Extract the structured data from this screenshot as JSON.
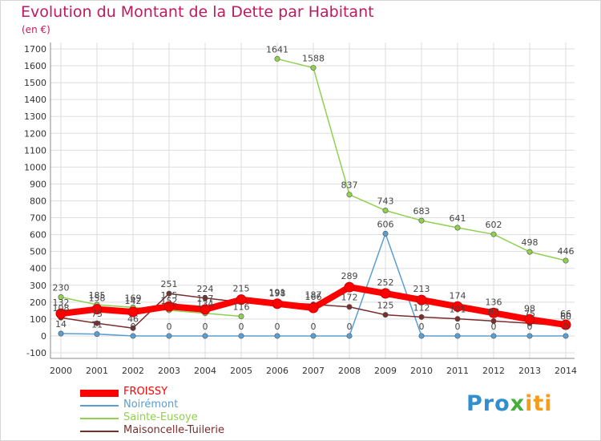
{
  "title": "Evolution du Montant de la Dette par Habitant",
  "subtitle": "(en €)",
  "colors": {
    "title": "#c0195e",
    "background": "#ffffff",
    "grid": "#dddddd"
  },
  "logo": {
    "text": "Proxiti",
    "parts": [
      "Pro",
      "x",
      "iti"
    ]
  },
  "chart_data": {
    "type": "line",
    "title": "Evolution du Montant de la Dette par Habitant",
    "subtitle": "(en €)",
    "xlabel": "",
    "ylabel": "",
    "x": [
      "2000",
      "2001",
      "2002",
      "2003",
      "2004",
      "2005",
      "2006",
      "2007",
      "2008",
      "2009",
      "2010",
      "2011",
      "2012",
      "2013",
      "2014"
    ],
    "ylim": [
      -100,
      1700
    ],
    "yticks": [
      "-100",
      "0",
      "100",
      "200",
      "300",
      "400",
      "500",
      "600",
      "700",
      "800",
      "900",
      "1000",
      "1100",
      "1200",
      "1300",
      "1400",
      "1500",
      "1600",
      "1700"
    ],
    "grid": true,
    "legend_position": "bottom-left",
    "series": [
      {
        "name": "FROISSY",
        "color": "#ff0000",
        "emphasis": true,
        "values": [
          132,
          158,
          142,
          175,
          157,
          215,
          191,
          166,
          289,
          252,
          213,
          174,
          136,
          98,
          66
        ],
        "labels": [
          "132",
          "158",
          "142",
          "175",
          "157",
          "215",
          "191",
          "166",
          "289",
          "252",
          "213",
          "174",
          "136",
          "98",
          "66"
        ]
      },
      {
        "name": "Noirémont",
        "color": "#5a9fd4",
        "emphasis": false,
        "values": [
          14,
          11,
          0,
          0,
          0,
          0,
          0,
          0,
          0,
          606,
          0,
          0,
          0,
          0,
          0
        ],
        "labels": [
          "14",
          "11",
          "0",
          "0",
          "0",
          "0",
          "0",
          "0",
          "0",
          "606",
          "0",
          "0",
          "0",
          "0",
          "0"
        ]
      },
      {
        "name": "Sainte-Eusoye",
        "color": "#8fd14f",
        "emphasis": false,
        "values": [
          230,
          185,
          169,
          152,
          134,
          116,
          1641,
          1588,
          837,
          743,
          683,
          641,
          602,
          498,
          446
        ],
        "labels": [
          "230",
          "185",
          "169",
          "152",
          "134",
          "116",
          "1641",
          "1588",
          "837",
          "743",
          "683",
          "641",
          "602",
          "498",
          "446"
        ]
      },
      {
        "name": "Maisoncelle-Tuilerie",
        "color": "#7b2c2c",
        "emphasis": false,
        "values": [
          108,
          75,
          46,
          251,
          224,
          200,
          198,
          187,
          172,
          125,
          112,
          101,
          88,
          75,
          60
        ],
        "labels": [
          "108",
          "75",
          "46",
          "251",
          "224",
          "",
          "198",
          "187",
          "172",
          "125",
          "112",
          "101",
          "88",
          "75",
          "60"
        ]
      }
    ]
  }
}
